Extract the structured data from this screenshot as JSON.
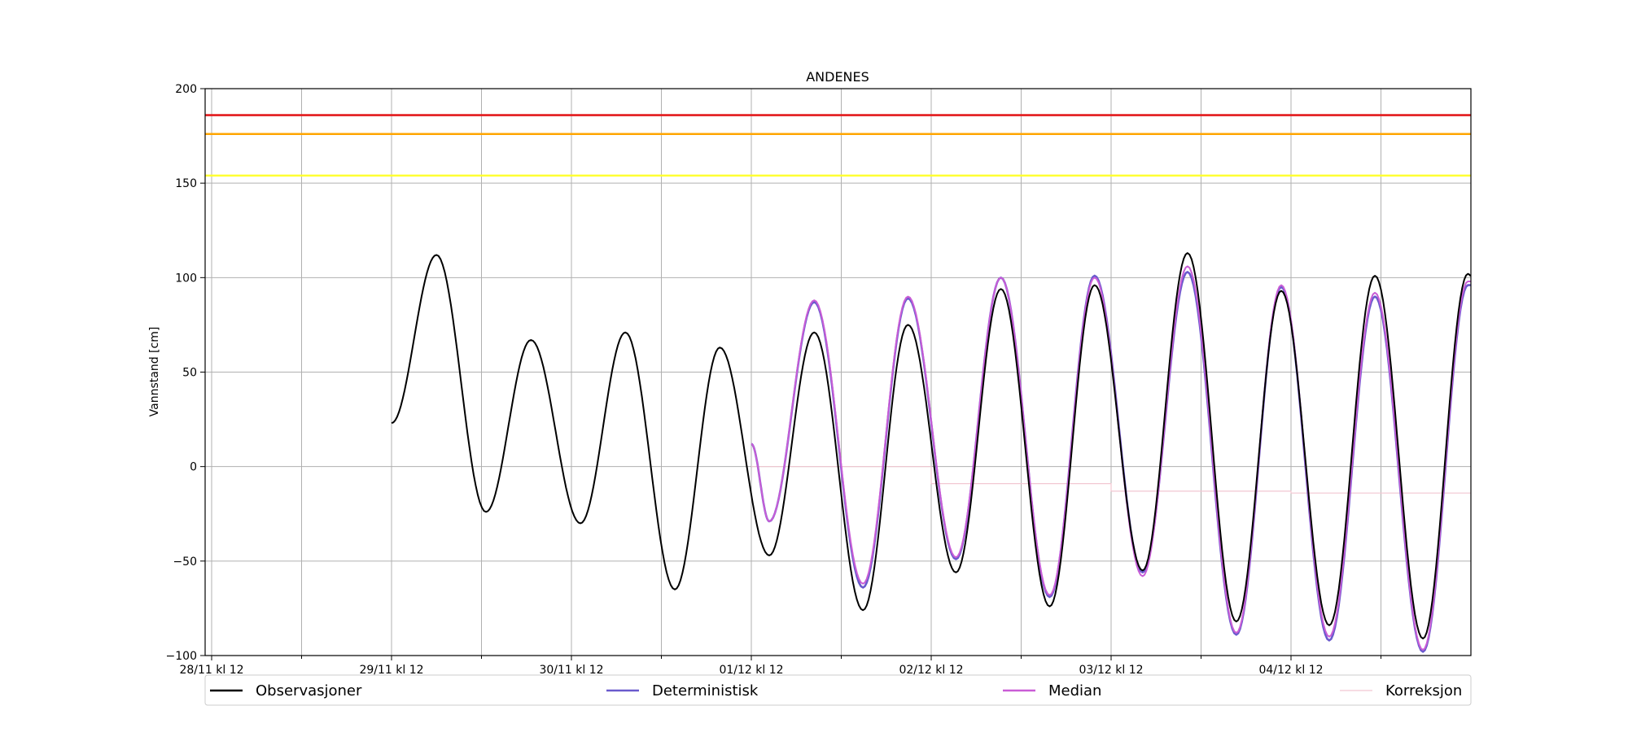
{
  "chart_data": {
    "type": "line",
    "title": "ANDENES",
    "xlabel": "",
    "ylabel": "Vannstand [cm]",
    "x_unit": "hours from 28/11 kl 12",
    "xlim": [
      0,
      168
    ],
    "ylim": [
      -100,
      200
    ],
    "yticks": [
      -100,
      -50,
      0,
      50,
      100,
      150,
      200
    ],
    "ytick_labels": [
      "−100",
      "−50",
      "0",
      "50",
      "100",
      "150",
      "200"
    ],
    "xticks_major": [
      0,
      24,
      48,
      72,
      96,
      120,
      144
    ],
    "xtick_labels": [
      "28/11 kl 12",
      "29/11 kl 12",
      "30/11 kl 12",
      "01/12 kl 12",
      "02/12 kl 12",
      "03/12 kl 12",
      "04/12 kl 12"
    ],
    "xticks_minor": [
      12,
      36,
      60,
      84,
      108,
      132,
      156
    ],
    "grid": true,
    "legend_position": "bottom",
    "thresholds": [
      {
        "value": 186,
        "color": "#e31a1c"
      },
      {
        "value": 176,
        "color": "#ffa500"
      },
      {
        "value": 154,
        "color": "#ffff33"
      }
    ],
    "series": [
      {
        "name": "Observasjoner",
        "color": "#000000",
        "extrema": [
          [
            24.0,
            23
          ],
          [
            30.0,
            112
          ],
          [
            36.6,
            -24
          ],
          [
            42.6,
            67
          ],
          [
            49.2,
            -30
          ],
          [
            55.2,
            71
          ],
          [
            61.8,
            -65
          ],
          [
            67.8,
            63
          ],
          [
            74.4,
            -47
          ],
          [
            80.4,
            71
          ],
          [
            86.9,
            -76
          ],
          [
            92.9,
            75
          ],
          [
            99.3,
            -56
          ],
          [
            105.3,
            94
          ],
          [
            111.8,
            -74
          ],
          [
            117.8,
            96
          ],
          [
            124.2,
            -55
          ],
          [
            130.2,
            113
          ],
          [
            136.7,
            -82
          ],
          [
            142.7,
            93
          ],
          [
            149.1,
            -84
          ],
          [
            155.2,
            101
          ],
          [
            161.6,
            -91
          ],
          [
            167.6,
            102
          ],
          [
            168.0,
            101
          ]
        ]
      },
      {
        "name": "Deterministisk",
        "color": "#6a5acd",
        "extrema": [
          [
            72.0,
            12
          ],
          [
            74.4,
            -29
          ],
          [
            80.4,
            87
          ],
          [
            86.9,
            -64
          ],
          [
            92.9,
            89
          ],
          [
            99.3,
            -49
          ],
          [
            105.3,
            100
          ],
          [
            111.8,
            -69
          ],
          [
            117.8,
            101
          ],
          [
            124.2,
            -56
          ],
          [
            130.2,
            103
          ],
          [
            136.7,
            -89
          ],
          [
            142.7,
            95
          ],
          [
            149.1,
            -92
          ],
          [
            155.2,
            90
          ],
          [
            161.6,
            -98
          ],
          [
            167.6,
            96
          ],
          [
            168.0,
            96
          ]
        ]
      },
      {
        "name": "Median",
        "color": "#c95dd6",
        "extrema": [
          [
            72.0,
            12
          ],
          [
            74.4,
            -29
          ],
          [
            80.4,
            88
          ],
          [
            86.9,
            -62
          ],
          [
            92.9,
            90
          ],
          [
            99.3,
            -48
          ],
          [
            105.3,
            100
          ],
          [
            111.8,
            -68
          ],
          [
            117.8,
            100
          ],
          [
            124.2,
            -58
          ],
          [
            130.2,
            106
          ],
          [
            136.7,
            -88
          ],
          [
            142.7,
            96
          ],
          [
            149.1,
            -90
          ],
          [
            155.2,
            92
          ],
          [
            161.6,
            -97
          ],
          [
            167.6,
            98
          ],
          [
            168.0,
            98
          ]
        ]
      },
      {
        "name": "Korreksjon",
        "color": "#f2c7d2",
        "steps": [
          [
            72.0,
            0
          ],
          [
            96.0,
            0
          ],
          [
            96.0,
            -9
          ],
          [
            120.0,
            -9
          ],
          [
            120.0,
            -13
          ],
          [
            144.0,
            -13
          ],
          [
            144.0,
            -14
          ],
          [
            168.0,
            -14
          ]
        ]
      }
    ]
  }
}
